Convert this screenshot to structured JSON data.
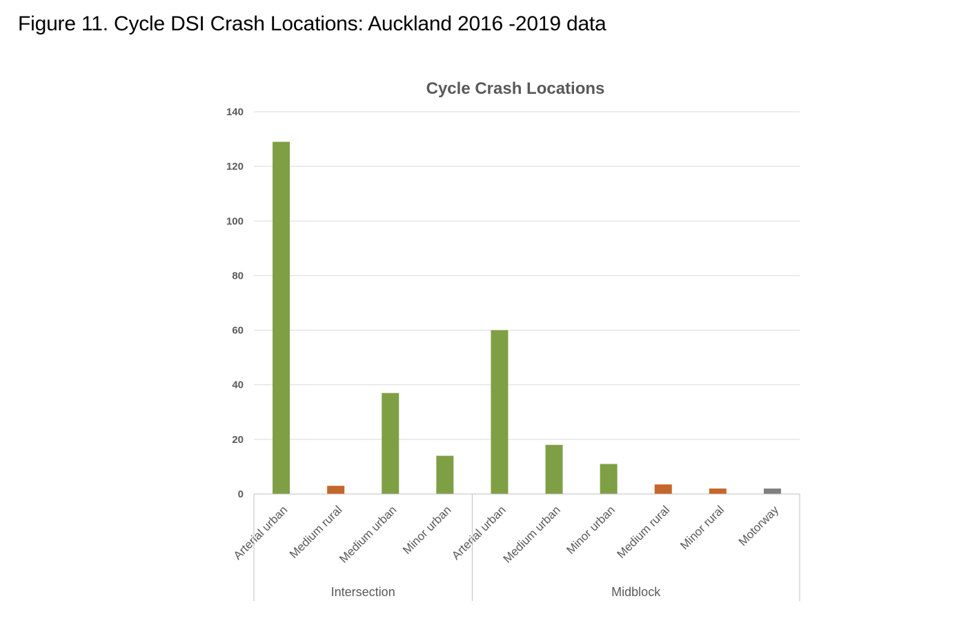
{
  "caption": "Figure 11. Cycle DSI Crash Locations: Auckland 2016 -2019 data",
  "colors": {
    "urban": "#7f9f45",
    "rural": "#c5662a",
    "motorway": "#7f7f7f",
    "grid": "#d9d9d9",
    "axis": "#bfbfbf",
    "text": "#595959"
  },
  "chart_data": {
    "type": "bar",
    "title": "Cycle Crash Locations",
    "xlabel": "",
    "ylabel": "",
    "ylim": [
      0,
      140
    ],
    "yticks": [
      0,
      20,
      40,
      60,
      80,
      100,
      120,
      140
    ],
    "grid": true,
    "legend": "none",
    "groups": [
      {
        "label": "Intersection",
        "start": 0,
        "count": 4
      },
      {
        "label": "Midblock",
        "start": 4,
        "count": 6
      }
    ],
    "categories": [
      "Arterial urban",
      "Medium rural",
      "Medium urban",
      "Minor urban",
      "Arterial urban",
      "Medium urban",
      "Minor urban",
      "Medium rural",
      "Minor rural",
      "Motorway"
    ],
    "values": [
      129,
      3,
      37,
      14,
      60,
      18,
      11,
      3.5,
      2,
      2
    ],
    "bar_colors": [
      "urban",
      "rural",
      "urban",
      "urban",
      "urban",
      "urban",
      "urban",
      "rural",
      "rural",
      "motorway"
    ]
  }
}
